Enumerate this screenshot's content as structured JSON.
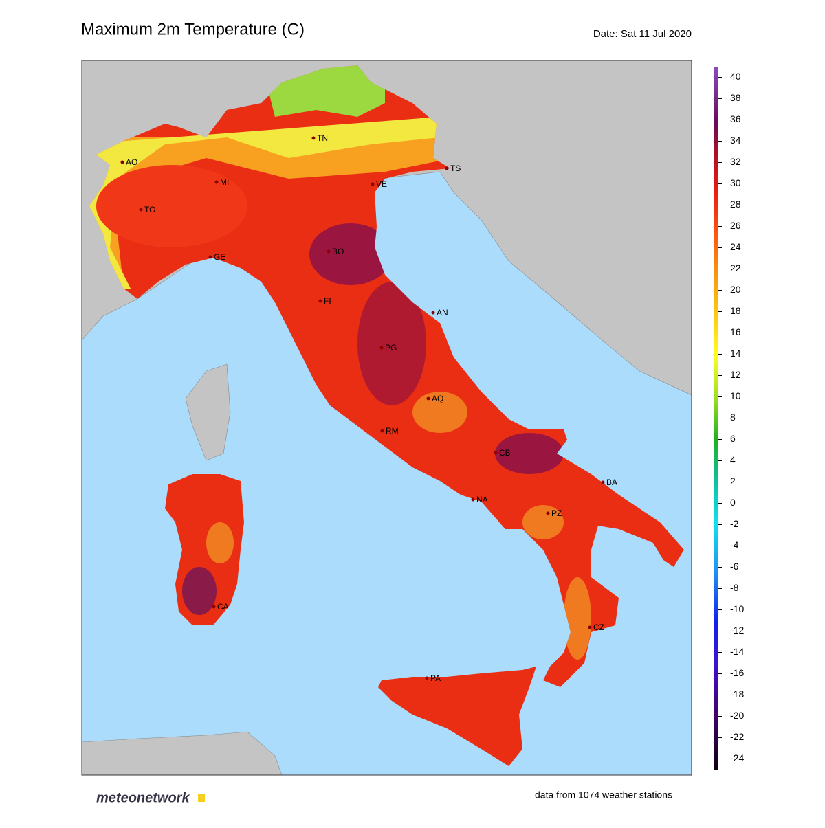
{
  "title": "Maximum 2m Temperature (C)",
  "date": "Date: Sat 11 Jul 2020",
  "colorbar": {
    "range": [
      -25,
      41
    ],
    "ticks": [
      40,
      38,
      36,
      34,
      32,
      30,
      28,
      26,
      24,
      22,
      20,
      18,
      16,
      14,
      12,
      10,
      8,
      6,
      4,
      2,
      0,
      -2,
      -4,
      -6,
      -8,
      -10,
      -12,
      -14,
      -16,
      -18,
      -20,
      -22,
      -24
    ]
  },
  "cities": [
    "TN",
    "TS",
    "AO",
    "MI",
    "VE",
    "TO",
    "GE",
    "BO",
    "FI",
    "AN",
    "PG",
    "AQ",
    "RM",
    "CB",
    "BA",
    "NA",
    "PZ",
    "CA",
    "CZ",
    "PA"
  ],
  "footer": {
    "logo": "meteonetwork",
    "stations": "data from 1074 weather stations"
  }
}
